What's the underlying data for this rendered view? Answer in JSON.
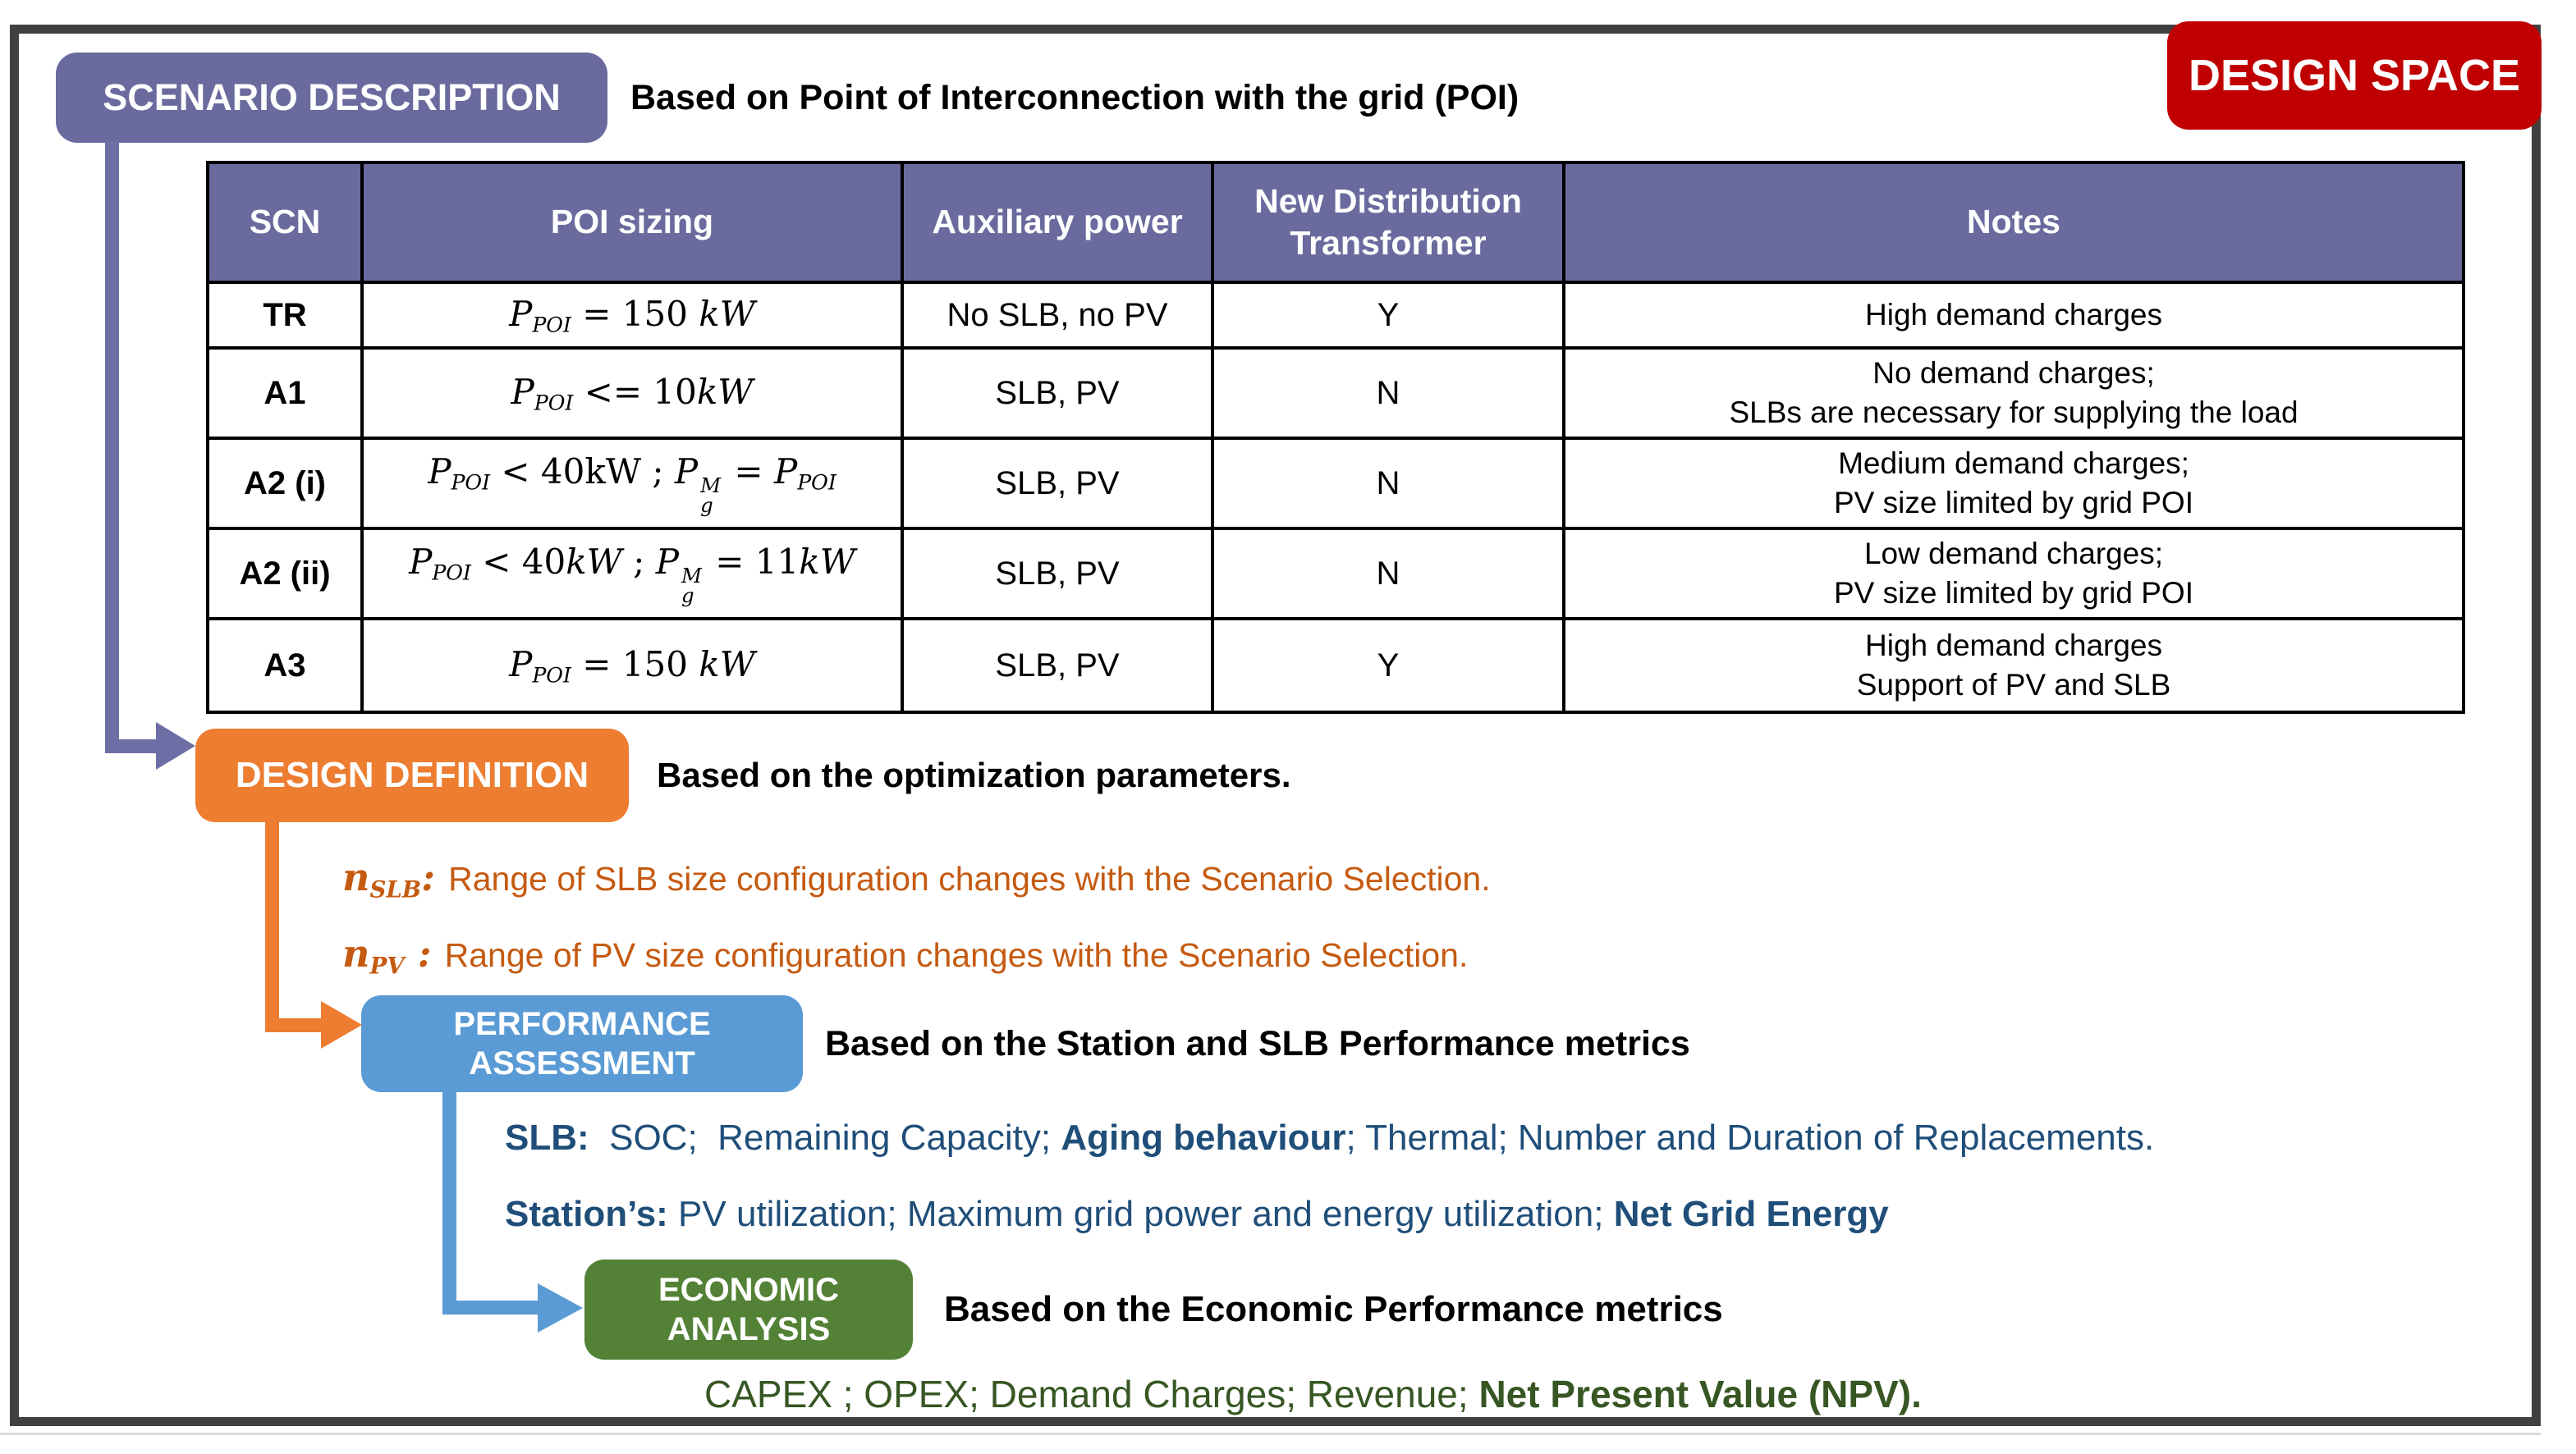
{
  "colors": {
    "purple": "#6A6A9E",
    "purple_arrow": "#6E6EA6",
    "orange": "#ED7D31",
    "orange_text": "#C55A11",
    "blue": "#5B9BD5",
    "blue_text": "#1F4E79",
    "green": "#538135",
    "green_text": "#375623",
    "red": "#C00000",
    "frame": "#404040"
  },
  "design_space_badge": "DESIGN SPACE",
  "scenario": {
    "badge": "SCENARIO DESCRIPTION",
    "subtitle": "Based on Point of Interconnection with the grid (POI)",
    "table": {
      "headers": [
        "SCN",
        "POI sizing",
        "Auxiliary power",
        "New Distribution\nTransformer",
        "Notes"
      ],
      "rows": [
        {
          "scn": "TR",
          "poi": [
            {
              "i": "P"
            },
            {
              "sub": "POI"
            },
            {
              "t": " = 150 "
            },
            {
              "i": "kW"
            }
          ],
          "aux": "No SLB, no PV",
          "transformer": "Y",
          "notes": "High demand charges"
        },
        {
          "scn": "A1",
          "poi": [
            {
              "i": "P"
            },
            {
              "sub": "POI"
            },
            {
              "t": " <= 10"
            },
            {
              "i": "kW"
            }
          ],
          "aux": "SLB, PV",
          "transformer": "N",
          "notes": "No demand charges;\nSLBs are necessary for supplying the load"
        },
        {
          "scn": "A2 (i)",
          "poi": [
            {
              "i": "P"
            },
            {
              "sub": "POI"
            },
            {
              "t": " < 40kW ; "
            },
            {
              "i": "P"
            },
            {
              "supsub": [
                "M",
                "g"
              ]
            },
            {
              "t": " = "
            },
            {
              "i": "P"
            },
            {
              "sub": "POI"
            }
          ],
          "aux": "SLB, PV",
          "transformer": "N",
          "notes": "Medium demand charges;\nPV size limited by grid POI"
        },
        {
          "scn": "A2 (ii)",
          "poi": [
            {
              "i": "P"
            },
            {
              "sub": "POI"
            },
            {
              "t": " < 40"
            },
            {
              "i": "kW"
            },
            {
              "t": " ; "
            },
            {
              "i": "P"
            },
            {
              "supsub": [
                "M",
                "g"
              ]
            },
            {
              "t": " = 11"
            },
            {
              "i": "kW"
            }
          ],
          "aux": "SLB, PV",
          "transformer": "N",
          "notes": "Low demand charges;\nPV size limited by grid POI"
        },
        {
          "scn": "A3",
          "poi": [
            {
              "i": "P"
            },
            {
              "sub": "POI"
            },
            {
              "t": " = 150 "
            },
            {
              "i": "kW"
            }
          ],
          "aux": "SLB, PV",
          "transformer": "Y",
          "notes": "High demand charges\nSupport of PV and SLB"
        }
      ]
    }
  },
  "design_definition": {
    "badge": "DESIGN DEFINITION",
    "subtitle": "Based on the optimization parameters.",
    "parameters": [
      {
        "symbol": [
          {
            "bi": "n"
          },
          {
            "bsub": "SLB"
          },
          {
            "b": ": "
          }
        ],
        "text": "Range of SLB size configuration changes with the Scenario Selection."
      },
      {
        "symbol": [
          {
            "bi": "n"
          },
          {
            "bsub": "PV"
          },
          {
            "b": " : "
          }
        ],
        "text": "Range of PV size configuration changes with the Scenario Selection."
      }
    ]
  },
  "performance": {
    "badge": "PERFORMANCE\nASSESSMENT",
    "subtitle": "Based on the Station and SLB Performance metrics",
    "metrics": [
      [
        {
          "t": "SLB:",
          "b": true
        },
        {
          "t": "  SOC;  Remaining Capacity; "
        },
        {
          "t": "Aging behaviour",
          "b": true
        },
        {
          "t": "; Thermal; Number and Duration of Replacements."
        }
      ],
      [
        {
          "t": "Station’s:",
          "b": true
        },
        {
          "t": " PV utilization; Maximum grid power and energy utilization; "
        },
        {
          "t": "Net Grid Energy",
          "b": true
        }
      ]
    ]
  },
  "economic": {
    "badge": "ECONOMIC\nANALYSIS",
    "subtitle": "Based on the Economic Performance metrics",
    "metrics": [
      {
        "t": "CAPEX ; OPEX; Demand Charges; Revenue; "
      },
      {
        "t": "Net Present Value (NPV).",
        "b": true
      }
    ]
  }
}
